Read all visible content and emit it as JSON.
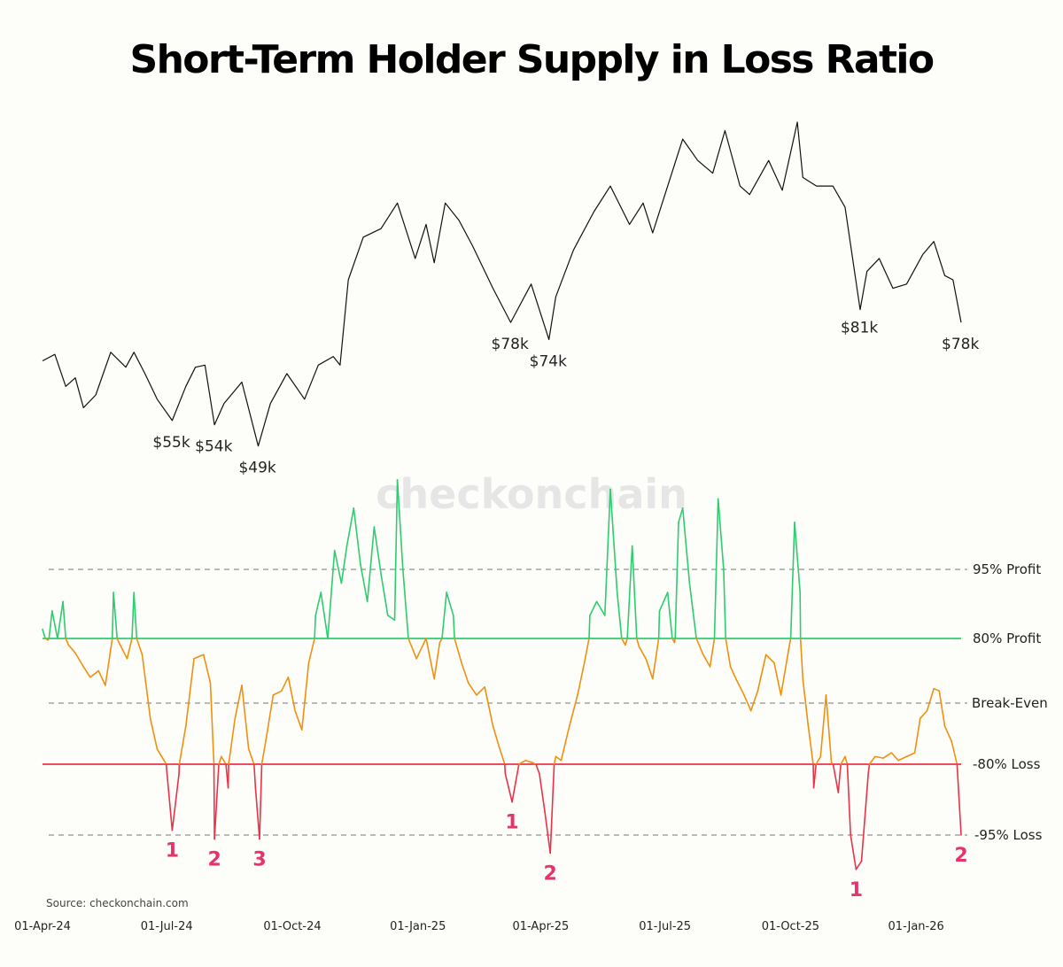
{
  "title": "Short-Term Holder Supply in Loss Ratio",
  "source": "Source: checkonchain.com",
  "watermark": "checkonchain",
  "colors": {
    "background": "#fdfdf9",
    "price_line": "#111111",
    "profit": "#2ecc71",
    "neutral": "#f0900f",
    "loss": "#e8334a",
    "grid_dash": "#777777",
    "annotation": "#e8336a"
  },
  "chart_data": [
    {
      "type": "line",
      "name": "price",
      "x_range": [
        "2024-04-01",
        "2026-02-03"
      ],
      "ylim": [
        45000,
        115000
      ],
      "series": [
        {
          "values": [
            [
              "2024-04-01",
              69000
            ],
            [
              "2024-04-10",
              70500
            ],
            [
              "2024-04-18",
              63000
            ],
            [
              "2024-04-25",
              65000
            ],
            [
              "2024-05-01",
              58000
            ],
            [
              "2024-05-10",
              61000
            ],
            [
              "2024-05-21",
              71000
            ],
            [
              "2024-06-01",
              67500
            ],
            [
              "2024-06-07",
              71000
            ],
            [
              "2024-06-15",
              66000
            ],
            [
              "2024-06-24",
              60000
            ],
            [
              "2024-07-05",
              55000
            ],
            [
              "2024-07-15",
              63000
            ],
            [
              "2024-07-22",
              67500
            ],
            [
              "2024-07-29",
              68000
            ],
            [
              "2024-08-05",
              54000
            ],
            [
              "2024-08-12",
              59000
            ],
            [
              "2024-08-25",
              64000
            ],
            [
              "2024-09-06",
              49000
            ],
            [
              "2024-09-15",
              59000
            ],
            [
              "2024-09-27",
              66000
            ],
            [
              "2024-10-10",
              60000
            ],
            [
              "2024-10-20",
              68000
            ],
            [
              "2024-10-31",
              70000
            ],
            [
              "2024-11-05",
              68000
            ],
            [
              "2024-11-11",
              88000
            ],
            [
              "2024-11-22",
              98000
            ],
            [
              "2024-12-05",
              100000
            ],
            [
              "2024-12-17",
              106000
            ],
            [
              "2024-12-30",
              93000
            ],
            [
              "2025-01-07",
              101000
            ],
            [
              "2025-01-13",
              92000
            ],
            [
              "2025-01-21",
              106000
            ],
            [
              "2025-01-31",
              102000
            ],
            [
              "2025-02-10",
              96000
            ],
            [
              "2025-02-25",
              86000
            ],
            [
              "2025-03-10",
              78000
            ],
            [
              "2025-03-25",
              87000
            ],
            [
              "2025-04-07",
              74000
            ],
            [
              "2025-04-12",
              84000
            ],
            [
              "2025-04-25",
              95000
            ],
            [
              "2025-05-10",
              104000
            ],
            [
              "2025-05-22",
              110000
            ],
            [
              "2025-06-05",
              101000
            ],
            [
              "2025-06-15",
              106000
            ],
            [
              "2025-06-22",
              99000
            ],
            [
              "2025-07-14",
              121000
            ],
            [
              "2025-07-25",
              116000
            ],
            [
              "2025-08-05",
              113000
            ],
            [
              "2025-08-14",
              123000
            ],
            [
              "2025-08-25",
              110000
            ],
            [
              "2025-09-01",
              108000
            ],
            [
              "2025-09-15",
              116000
            ],
            [
              "2025-09-25",
              109000
            ],
            [
              "2025-10-06",
              125000
            ],
            [
              "2025-10-10",
              112000
            ],
            [
              "2025-10-20",
              110000
            ],
            [
              "2025-11-01",
              110000
            ],
            [
              "2025-11-10",
              105000
            ],
            [
              "2025-11-21",
              81000
            ],
            [
              "2025-11-26",
              90000
            ],
            [
              "2025-12-05",
              93000
            ],
            [
              "2025-12-15",
              86000
            ],
            [
              "2025-12-25",
              87000
            ],
            [
              "2026-01-06",
              94000
            ],
            [
              "2026-01-14",
              97000
            ],
            [
              "2026-01-22",
              89000
            ],
            [
              "2026-01-28",
              88000
            ],
            [
              "2026-02-03",
              78000
            ]
          ]
        }
      ],
      "annotations": [
        {
          "date": "2024-07-05",
          "text": "$55k"
        },
        {
          "date": "2024-08-05",
          "text": "$54k"
        },
        {
          "date": "2024-09-06",
          "text": "$49k"
        },
        {
          "date": "2025-03-10",
          "text": "$78k"
        },
        {
          "date": "2025-04-07",
          "text": "$74k"
        },
        {
          "date": "2025-11-21",
          "text": "$81k"
        },
        {
          "date": "2026-02-03",
          "text": "$78k"
        }
      ]
    },
    {
      "type": "line",
      "name": "sth_supply_in_loss_ratio",
      "xlabel": "",
      "ylabel": "",
      "x_ticks": [
        "01-Apr-24",
        "01-Jul-24",
        "01-Oct-24",
        "01-Jan-25",
        "01-Apr-25",
        "01-Jul-25",
        "01-Oct-25",
        "01-Jan-26"
      ],
      "reference_lines": [
        {
          "label": "95% Profit",
          "level": 0.95,
          "style": "dashed"
        },
        {
          "label": "80% Profit",
          "level": 0.8,
          "style": "solid-green"
        },
        {
          "label": "Break-Even",
          "level": 0.0,
          "style": "dashed"
        },
        {
          "label": "-80% Loss",
          "level": -0.8,
          "style": "solid-red"
        },
        {
          "label": "-95% Loss",
          "level": -0.95,
          "style": "dashed"
        }
      ],
      "series": [
        {
          "values": [
            [
              "2024-04-01",
              0.82
            ],
            [
              "2024-04-05",
              0.78
            ],
            [
              "2024-04-08",
              0.86
            ],
            [
              "2024-04-12",
              0.8
            ],
            [
              "2024-04-16",
              0.88
            ],
            [
              "2024-04-20",
              0.72
            ],
            [
              "2024-04-25",
              0.62
            ],
            [
              "2024-05-01",
              0.45
            ],
            [
              "2024-05-06",
              0.32
            ],
            [
              "2024-05-12",
              0.4
            ],
            [
              "2024-05-17",
              0.22
            ],
            [
              "2024-05-23",
              0.9
            ],
            [
              "2024-05-27",
              0.75
            ],
            [
              "2024-06-02",
              0.55
            ],
            [
              "2024-06-07",
              0.9
            ],
            [
              "2024-06-13",
              0.6
            ],
            [
              "2024-06-19",
              -0.2
            ],
            [
              "2024-06-24",
              -0.6
            ],
            [
              "2024-06-29",
              -0.75
            ],
            [
              "2024-07-05",
              -0.94
            ],
            [
              "2024-07-10",
              -0.82
            ],
            [
              "2024-07-15",
              -0.3
            ],
            [
              "2024-07-21",
              0.55
            ],
            [
              "2024-07-28",
              0.6
            ],
            [
              "2024-08-02",
              0.25
            ],
            [
              "2024-08-05",
              -0.97
            ],
            [
              "2024-08-10",
              -0.7
            ],
            [
              "2024-08-15",
              -0.85
            ],
            [
              "2024-08-20",
              -0.2
            ],
            [
              "2024-08-25",
              0.22
            ],
            [
              "2024-08-30",
              -0.6
            ],
            [
              "2024-09-04",
              -0.85
            ],
            [
              "2024-09-07",
              -0.97
            ],
            [
              "2024-09-12",
              -0.45
            ],
            [
              "2024-09-17",
              0.1
            ],
            [
              "2024-09-23",
              0.15
            ],
            [
              "2024-09-28",
              0.32
            ],
            [
              "2024-10-03",
              -0.1
            ],
            [
              "2024-10-08",
              -0.35
            ],
            [
              "2024-10-13",
              0.5
            ],
            [
              "2024-10-18",
              0.85
            ],
            [
              "2024-10-22",
              0.9
            ],
            [
              "2024-10-27",
              0.8
            ],
            [
              "2024-11-01",
              0.99
            ],
            [
              "2024-11-06",
              0.92
            ],
            [
              "2024-11-10",
              1.0
            ],
            [
              "2024-11-15",
              1.08
            ],
            [
              "2024-11-20",
              0.96
            ],
            [
              "2024-11-25",
              0.88
            ],
            [
              "2024-11-30",
              1.04
            ],
            [
              "2024-12-05",
              0.94
            ],
            [
              "2024-12-10",
              0.85
            ],
            [
              "2024-12-15",
              0.84
            ],
            [
              "2024-12-17",
              1.14
            ],
            [
              "2024-12-21",
              0.95
            ],
            [
              "2024-12-25",
              0.8
            ],
            [
              "2024-12-31",
              0.55
            ],
            [
              "2025-01-07",
              0.8
            ],
            [
              "2025-01-13",
              0.3
            ],
            [
              "2025-01-17",
              0.75
            ],
            [
              "2025-01-22",
              0.9
            ],
            [
              "2025-01-27",
              0.85
            ],
            [
              "2025-02-02",
              0.5
            ],
            [
              "2025-02-07",
              0.25
            ],
            [
              "2025-02-13",
              0.1
            ],
            [
              "2025-02-19",
              0.2
            ],
            [
              "2025-02-25",
              -0.3
            ],
            [
              "2025-03-02",
              -0.6
            ],
            [
              "2025-03-06",
              -0.82
            ],
            [
              "2025-03-11",
              -0.88
            ],
            [
              "2025-03-16",
              -0.8
            ],
            [
              "2025-03-21",
              -0.75
            ],
            [
              "2025-03-26",
              -0.78
            ],
            [
              "2025-03-31",
              -0.82
            ],
            [
              "2025-04-04",
              -0.9
            ],
            [
              "2025-04-08",
              -1.04
            ],
            [
              "2025-04-12",
              -0.7
            ],
            [
              "2025-04-16",
              -0.75
            ],
            [
              "2025-04-22",
              -0.3
            ],
            [
              "2025-04-28",
              0.1
            ],
            [
              "2025-05-03",
              0.5
            ],
            [
              "2025-05-07",
              0.85
            ],
            [
              "2025-05-12",
              0.88
            ],
            [
              "2025-05-18",
              0.85
            ],
            [
              "2025-05-22",
              1.12
            ],
            [
              "2025-05-27",
              0.9
            ],
            [
              "2025-06-02",
              0.72
            ],
            [
              "2025-06-07",
              1.0
            ],
            [
              "2025-06-12",
              0.7
            ],
            [
              "2025-06-17",
              0.55
            ],
            [
              "2025-06-22",
              0.3
            ],
            [
              "2025-06-27",
              0.86
            ],
            [
              "2025-07-03",
              0.9
            ],
            [
              "2025-07-08",
              0.75
            ],
            [
              "2025-07-11",
              1.05
            ],
            [
              "2025-07-14",
              1.08
            ],
            [
              "2025-07-19",
              0.92
            ],
            [
              "2025-07-24",
              0.8
            ],
            [
              "2025-07-29",
              0.6
            ],
            [
              "2025-08-03",
              0.45
            ],
            [
              "2025-08-09",
              1.1
            ],
            [
              "2025-08-13",
              0.95
            ],
            [
              "2025-08-18",
              0.45
            ],
            [
              "2025-08-22",
              0.3
            ],
            [
              "2025-08-28",
              0.1
            ],
            [
              "2025-09-02",
              -0.1
            ],
            [
              "2025-09-07",
              0.15
            ],
            [
              "2025-09-13",
              0.6
            ],
            [
              "2025-09-19",
              0.5
            ],
            [
              "2025-09-24",
              0.1
            ],
            [
              "2025-09-30",
              0.7
            ],
            [
              "2025-10-04",
              1.05
            ],
            [
              "2025-10-08",
              0.9
            ],
            [
              "2025-10-10",
              0.3
            ],
            [
              "2025-10-14",
              -0.3
            ],
            [
              "2025-10-18",
              -0.85
            ],
            [
              "2025-10-23",
              -0.7
            ],
            [
              "2025-10-27",
              0.1
            ],
            [
              "2025-10-31",
              -0.78
            ],
            [
              "2025-11-05",
              -0.86
            ],
            [
              "2025-11-10",
              -0.7
            ],
            [
              "2025-11-14",
              -0.95
            ],
            [
              "2025-11-18",
              -1.12
            ],
            [
              "2025-11-22",
              -1.08
            ],
            [
              "2025-11-27",
              -0.82
            ],
            [
              "2025-12-02",
              -0.7
            ],
            [
              "2025-12-08",
              -0.72
            ],
            [
              "2025-12-14",
              -0.65
            ],
            [
              "2025-12-19",
              -0.75
            ],
            [
              "2025-12-25",
              -0.7
            ],
            [
              "2025-12-31",
              -0.65
            ],
            [
              "2026-01-04",
              -0.2
            ],
            [
              "2026-01-09",
              -0.1
            ],
            [
              "2026-01-14",
              0.18
            ],
            [
              "2026-01-18",
              0.15
            ],
            [
              "2026-01-22",
              -0.3
            ],
            [
              "2026-01-27",
              -0.5
            ],
            [
              "2026-01-31",
              -0.8
            ],
            [
              "2026-02-03",
              -0.95
            ]
          ]
        }
      ],
      "annotations": [
        {
          "date": "2024-07-05",
          "text": "1"
        },
        {
          "date": "2024-08-05",
          "text": "2"
        },
        {
          "date": "2024-09-07",
          "text": "3"
        },
        {
          "date": "2025-03-11",
          "text": "1"
        },
        {
          "date": "2025-04-08",
          "text": "2"
        },
        {
          "date": "2025-11-18",
          "text": "1"
        },
        {
          "date": "2026-02-03",
          "text": "2"
        }
      ]
    }
  ]
}
